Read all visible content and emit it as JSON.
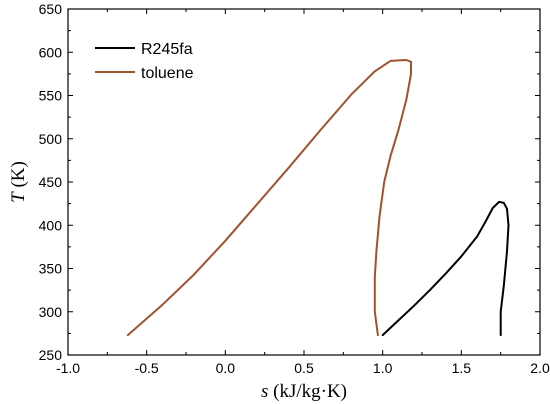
{
  "chart_data": {
    "type": "line",
    "xlabel": {
      "symbol": "s",
      "unit": " (kJ/kg·K)"
    },
    "ylabel": {
      "symbol": "T",
      "unit": " (K)"
    },
    "xlim": [
      -1.0,
      2.0
    ],
    "ylim": [
      250,
      650
    ],
    "x_ticks": [
      "-1.0",
      "-0.5",
      "0.0",
      "0.5",
      "1.0",
      "1.5",
      "2.0"
    ],
    "y_ticks": [
      "250",
      "300",
      "350",
      "400",
      "450",
      "500",
      "550",
      "600",
      "650"
    ],
    "grid": false,
    "legend_position": "top-left",
    "series": [
      {
        "name": "R245fa",
        "color": "#000000",
        "points": [
          [
            1.0,
            273
          ],
          [
            1.1,
            290
          ],
          [
            1.2,
            307
          ],
          [
            1.3,
            325
          ],
          [
            1.4,
            344
          ],
          [
            1.5,
            364
          ],
          [
            1.6,
            387
          ],
          [
            1.65,
            403
          ],
          [
            1.7,
            420
          ],
          [
            1.74,
            427
          ],
          [
            1.77,
            426
          ],
          [
            1.79,
            419
          ],
          [
            1.8,
            400
          ],
          [
            1.79,
            370
          ],
          [
            1.77,
            330
          ],
          [
            1.75,
            300
          ],
          [
            1.75,
            273
          ]
        ]
      },
      {
        "name": "toluene",
        "color": "#a0522d",
        "points": [
          [
            -0.62,
            273
          ],
          [
            -0.4,
            308
          ],
          [
            -0.2,
            343
          ],
          [
            0.0,
            382
          ],
          [
            0.2,
            424
          ],
          [
            0.4,
            466
          ],
          [
            0.6,
            509
          ],
          [
            0.8,
            551
          ],
          [
            0.95,
            578
          ],
          [
            1.05,
            590
          ],
          [
            1.15,
            591
          ],
          [
            1.18,
            589
          ],
          [
            1.18,
            575
          ],
          [
            1.15,
            545
          ],
          [
            1.1,
            510
          ],
          [
            1.05,
            480
          ],
          [
            1.01,
            450
          ],
          [
            0.98,
            410
          ],
          [
            0.96,
            370
          ],
          [
            0.95,
            340
          ],
          [
            0.95,
            300
          ],
          [
            0.97,
            273
          ]
        ]
      }
    ]
  }
}
